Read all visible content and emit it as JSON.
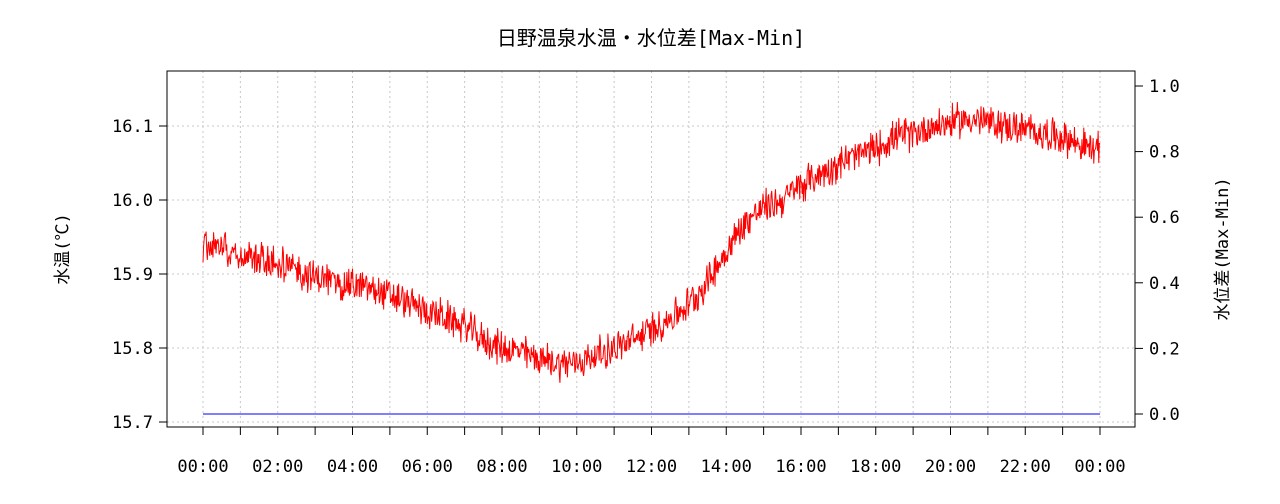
{
  "chart_data": {
    "type": "line",
    "title": "日野温泉水温・水位差[Max-Min]",
    "xlabel": "",
    "ylabel_left": "水温(℃)",
    "ylabel_right": "水位差(Max-Min)",
    "x_ticks": [
      "00:00",
      "02:00",
      "04:00",
      "06:00",
      "08:00",
      "10:00",
      "12:00",
      "14:00",
      "16:00",
      "18:00",
      "20:00",
      "22:00",
      "00:00"
    ],
    "x_range_hours": [
      0,
      24
    ],
    "ylim_left": [
      15.7,
      16.15
    ],
    "ylim_right": [
      0,
      1.0
    ],
    "y_ticks_left": [
      "15.7",
      "15.8",
      "15.9",
      "16.0",
      "16.1"
    ],
    "y_ticks_right": [
      "0.0",
      "0.2",
      "0.4",
      "0.6",
      "0.8",
      "1.0"
    ],
    "grid": true,
    "series": [
      {
        "axis": "left",
        "color": "#ff0000",
        "noise_amplitude": 0.02,
        "points": [
          [
            0,
            15.94
          ],
          [
            0.5,
            15.94
          ],
          [
            1,
            15.925
          ],
          [
            1.5,
            15.92
          ],
          [
            2,
            15.915
          ],
          [
            2.5,
            15.905
          ],
          [
            3,
            15.895
          ],
          [
            3.5,
            15.89
          ],
          [
            4,
            15.885
          ],
          [
            4.5,
            15.88
          ],
          [
            5,
            15.87
          ],
          [
            5.5,
            15.86
          ],
          [
            6,
            15.85
          ],
          [
            6.5,
            15.84
          ],
          [
            7,
            15.83
          ],
          [
            7.5,
            15.81
          ],
          [
            8,
            15.8
          ],
          [
            8.5,
            15.795
          ],
          [
            9,
            15.785
          ],
          [
            9.5,
            15.78
          ],
          [
            10,
            15.78
          ],
          [
            10.5,
            15.79
          ],
          [
            11,
            15.8
          ],
          [
            11.5,
            15.81
          ],
          [
            12,
            15.825
          ],
          [
            12.5,
            15.84
          ],
          [
            13,
            15.86
          ],
          [
            13.5,
            15.89
          ],
          [
            14,
            15.93
          ],
          [
            14.5,
            15.97
          ],
          [
            15,
            15.99
          ],
          [
            15.5,
            16.0
          ],
          [
            16,
            16.02
          ],
          [
            16.5,
            16.035
          ],
          [
            17,
            16.05
          ],
          [
            17.5,
            16.06
          ],
          [
            18,
            16.07
          ],
          [
            18.5,
            16.085
          ],
          [
            19,
            16.09
          ],
          [
            19.5,
            16.1
          ],
          [
            20,
            16.105
          ],
          [
            20.5,
            16.11
          ],
          [
            21,
            16.105
          ],
          [
            21.5,
            16.1
          ],
          [
            22,
            16.095
          ],
          [
            22.5,
            16.09
          ],
          [
            23,
            16.085
          ],
          [
            23.5,
            16.075
          ],
          [
            24,
            16.065
          ]
        ]
      },
      {
        "axis": "right",
        "color": "#0000ff",
        "points": [
          [
            0,
            0.0
          ],
          [
            24,
            0.0
          ]
        ]
      }
    ]
  }
}
